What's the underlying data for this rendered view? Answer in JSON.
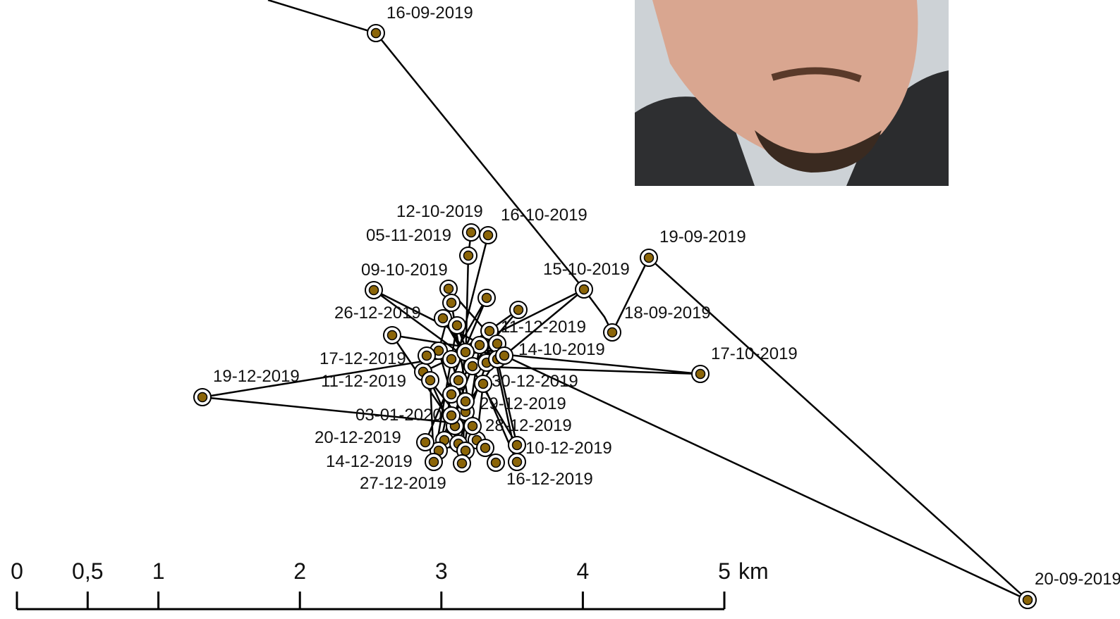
{
  "map": {
    "points": [
      {
        "label": "16-09-2019"
      },
      {
        "label": "12-10-2019"
      },
      {
        "label": "16-10-2019"
      },
      {
        "label": "05-11-2019"
      },
      {
        "label": "19-09-2019"
      },
      {
        "label": "09-10-2019"
      },
      {
        "label": "15-10-2019"
      },
      {
        "label": "26-12-2019"
      },
      {
        "label": "18-09-2019"
      },
      {
        "label": "11-12-2019"
      },
      {
        "label": "14-10-2019"
      },
      {
        "label": "17-12-2019"
      },
      {
        "label": "17-10-2019"
      },
      {
        "label": "19-12-2019"
      },
      {
        "label": "11-12-2019"
      },
      {
        "label": "30-12-2019"
      },
      {
        "label": "29-12-2019"
      },
      {
        "label": "03-01-2020"
      },
      {
        "label": "28-12-2019"
      },
      {
        "label": "20-12-2019"
      },
      {
        "label": "10-12-2019"
      },
      {
        "label": "14-12-2019"
      },
      {
        "label": "16-12-2019"
      },
      {
        "label": "27-12-2019"
      },
      {
        "label": "20-09-2019"
      }
    ],
    "scale_bar": {
      "ticks": [
        0,
        {
          "value": 0.5,
          "label": "0,5"
        },
        1,
        2,
        3,
        4,
        5
      ],
      "unit": "km"
    }
  }
}
